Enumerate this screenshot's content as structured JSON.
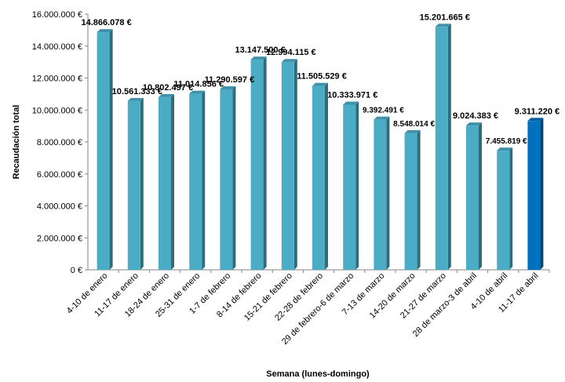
{
  "chart_data": {
    "type": "bar",
    "title": "",
    "xlabel": "Semana (lunes-domingo)",
    "ylabel": "Recaudación  total",
    "ylim": [
      0,
      16000000
    ],
    "y_ticks": [
      "0 €",
      "2.000.000 €",
      "4.000.000 €",
      "6.000.000 €",
      "8.000.000 €",
      "10.000.000 €",
      "12.000.000 €",
      "14.000.000 €",
      "16.000.000 €"
    ],
    "grid": false,
    "legend": "none",
    "categories": [
      "4-10 de enero",
      "11-17 de enero",
      "18-24 de enero",
      "25-31 de enero",
      "1-7 de febrero",
      "8-14 de febrero",
      "15-21 de febrero",
      "22-28 de febrero",
      "29 de febrero-6 de marzo",
      "7-13 de marzo",
      "14-20 de marzo",
      "21-27 de marzo",
      "28 de marzo-3 de abril",
      "4-10 de abril",
      "11-17 de abril"
    ],
    "values": [
      14866078,
      10561333,
      10802497,
      11014856,
      11290597,
      13147500,
      12994115,
      11505529,
      10333971,
      9392491,
      8548014,
      15201665,
      9024383,
      7455819,
      9311220
    ],
    "value_labels": [
      "14.866.078 €",
      "10.561.333 €",
      "10.802.497 €",
      "11.014.856 €",
      "11.290.597 €",
      "13.147.500 €",
      "12.994.115 €",
      "11.505.529 €",
      "10.333.971 €",
      "9.392.491 €",
      "8.548.014 €",
      "15.201.665 €",
      "9.024.383 €",
      "7.455.819 €",
      "9.311.220 €"
    ],
    "bar_color": "#4bacc6",
    "highlight_color": "#0070c0",
    "highlight_index": 14
  }
}
